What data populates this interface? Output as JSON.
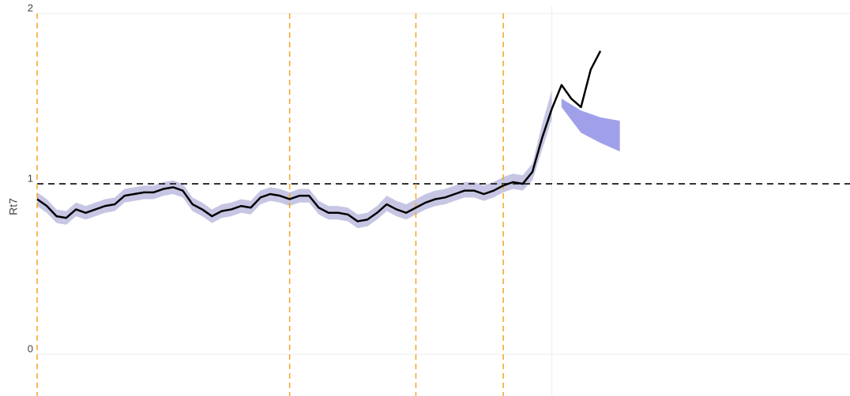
{
  "chart_data": {
    "type": "line",
    "y_label": "Rt7",
    "xlim": [
      0,
      83.7
    ],
    "ylim": [
      -0.245,
      2
    ],
    "yticks": [
      0,
      1,
      2
    ],
    "grid": true,
    "xgrid": [
      53
    ],
    "line": {
      "color": "#000000",
      "x": [
        0,
        1,
        2,
        3,
        4,
        5,
        6,
        7,
        8,
        9,
        10,
        11,
        12,
        13,
        14,
        15,
        16,
        17,
        18,
        19,
        20,
        21,
        22,
        23,
        24,
        25,
        26,
        27,
        28,
        29,
        30,
        31,
        32,
        33,
        34,
        35,
        36,
        37,
        38,
        39,
        40,
        41,
        42,
        43,
        44,
        45,
        46,
        47,
        48,
        49,
        50,
        51,
        52,
        53,
        54,
        55,
        56,
        57,
        58
      ],
      "values": [
        0.91,
        0.87,
        0.81,
        0.8,
        0.85,
        0.83,
        0.85,
        0.87,
        0.88,
        0.93,
        0.94,
        0.95,
        0.95,
        0.97,
        0.98,
        0.96,
        0.88,
        0.85,
        0.81,
        0.84,
        0.85,
        0.87,
        0.86,
        0.92,
        0.94,
        0.93,
        0.91,
        0.93,
        0.93,
        0.86,
        0.83,
        0.83,
        0.82,
        0.78,
        0.79,
        0.83,
        0.88,
        0.85,
        0.83,
        0.86,
        0.89,
        0.91,
        0.92,
        0.94,
        0.96,
        0.96,
        0.94,
        0.96,
        0.99,
        1.01,
        1.0,
        1.07,
        1.27,
        1.44,
        1.58,
        1.5,
        1.45,
        1.67,
        1.78
      ]
    },
    "band": {
      "color": "#c6c6e4",
      "x": [
        0,
        1,
        2,
        3,
        4,
        5,
        6,
        7,
        8,
        9,
        10,
        11,
        12,
        13,
        14,
        15,
        16,
        17,
        18,
        19,
        20,
        21,
        22,
        23,
        24,
        25,
        26,
        27,
        28,
        29,
        30,
        31,
        32,
        33,
        34,
        35,
        36,
        37,
        38,
        39,
        40,
        41,
        42,
        43,
        44,
        45,
        46,
        47,
        48,
        49,
        50,
        51,
        52,
        53
      ],
      "upper": [
        0.95,
        0.91,
        0.85,
        0.84,
        0.89,
        0.87,
        0.89,
        0.91,
        0.92,
        0.97,
        0.98,
        0.99,
        0.99,
        1.01,
        1.02,
        1.0,
        0.92,
        0.89,
        0.85,
        0.88,
        0.89,
        0.91,
        0.9,
        0.96,
        0.98,
        0.97,
        0.95,
        0.97,
        0.97,
        0.9,
        0.87,
        0.87,
        0.86,
        0.82,
        0.83,
        0.87,
        0.93,
        0.9,
        0.88,
        0.91,
        0.94,
        0.96,
        0.97,
        0.99,
        1.01,
        1.01,
        0.99,
        1.01,
        1.04,
        1.06,
        1.05,
        1.12,
        1.35,
        1.55
      ],
      "lower": [
        0.87,
        0.83,
        0.77,
        0.76,
        0.81,
        0.79,
        0.81,
        0.83,
        0.84,
        0.89,
        0.9,
        0.91,
        0.91,
        0.93,
        0.94,
        0.92,
        0.84,
        0.81,
        0.77,
        0.8,
        0.81,
        0.83,
        0.82,
        0.88,
        0.9,
        0.89,
        0.87,
        0.89,
        0.89,
        0.82,
        0.79,
        0.79,
        0.78,
        0.74,
        0.75,
        0.79,
        0.84,
        0.81,
        0.79,
        0.82,
        0.85,
        0.87,
        0.88,
        0.9,
        0.92,
        0.92,
        0.9,
        0.92,
        0.95,
        0.97,
        0.96,
        1.02,
        1.2,
        1.38
      ]
    },
    "forecast": {
      "color": "#a0a0ea",
      "x": [
        54,
        56,
        58,
        60
      ],
      "upper": [
        1.5,
        1.43,
        1.39,
        1.37
      ],
      "lower": [
        1.45,
        1.3,
        1.24,
        1.19
      ]
    },
    "hline": {
      "value": 1,
      "color": "#333333"
    },
    "vlines": {
      "color": "#f5a623",
      "x": [
        0,
        26,
        39,
        48
      ]
    }
  }
}
